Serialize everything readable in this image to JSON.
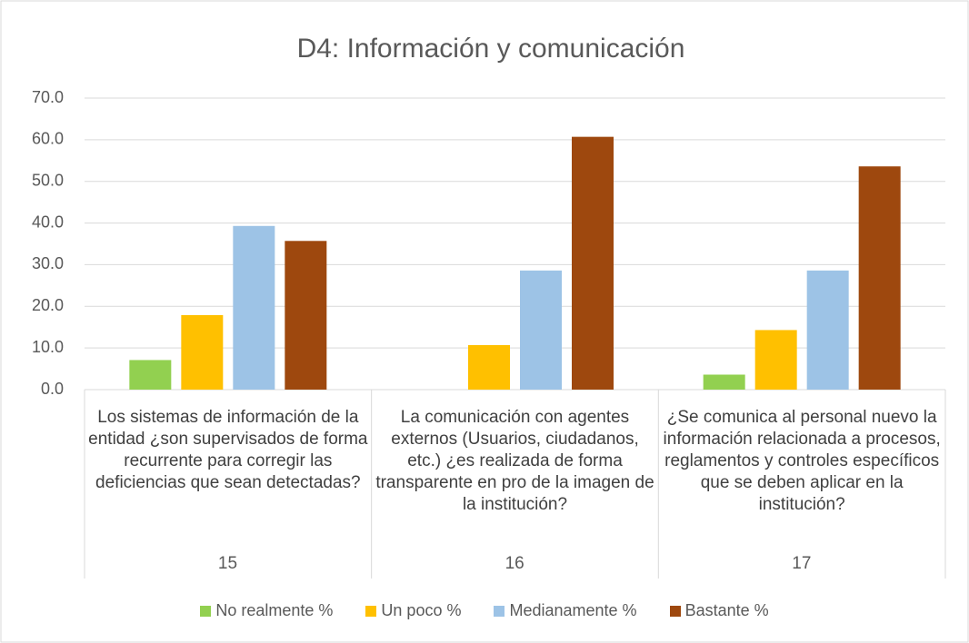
{
  "chart_data": {
    "type": "bar",
    "title": "D4: Información y comunicación",
    "categories": [
      "Los sistemas de información de la entidad ¿son supervisados de forma recurrente para corregir las deficiencias que sean detectadas?",
      "La comunicación con agentes externos (Usuarios, ciudadanos, etc.) ¿es realizada de forma transparente en pro de la imagen de la institución?",
      "¿Se comunica al personal nuevo la información relacionada a procesos, reglamentos y controles específicos que se deben aplicar en la institución?"
    ],
    "category_groups": [
      "15",
      "16",
      "17"
    ],
    "series": [
      {
        "name": "No realmente %",
        "color": "#92d050",
        "values": [
          7.1,
          0,
          3.6
        ]
      },
      {
        "name": "Un poco %",
        "color": "#ffc000",
        "values": [
          17.9,
          10.7,
          14.3
        ]
      },
      {
        "name": "Medianamente %",
        "color": "#9dc3e6",
        "values": [
          39.3,
          28.6,
          28.6
        ]
      },
      {
        "name": "Bastante %",
        "color": "#9e480e",
        "values": [
          35.7,
          60.7,
          53.6
        ]
      }
    ],
    "ylim": [
      0,
      70
    ],
    "yticks": [
      {
        "value": 0,
        "label": "0.0"
      },
      {
        "value": 10,
        "label": "10.0"
      },
      {
        "value": 20,
        "label": "20.0"
      },
      {
        "value": 30,
        "label": "30.0"
      },
      {
        "value": 40,
        "label": "40.0"
      },
      {
        "value": 50,
        "label": "50.0"
      },
      {
        "value": 60,
        "label": "60.0"
      },
      {
        "value": 70,
        "label": "70.0"
      }
    ],
    "grid": true,
    "legend": "bottom"
  }
}
